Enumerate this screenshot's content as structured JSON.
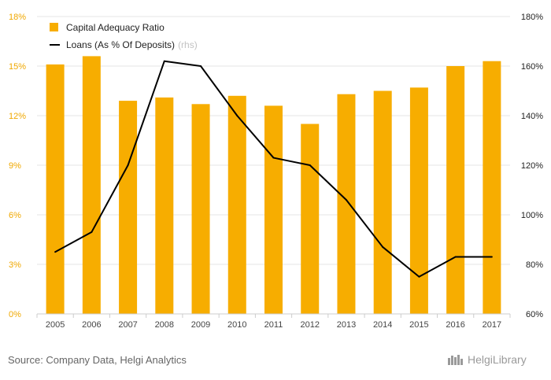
{
  "chart_data": {
    "type": "bar",
    "categories": [
      "2005",
      "2006",
      "2007",
      "2008",
      "2009",
      "2010",
      "2011",
      "2012",
      "2013",
      "2014",
      "2015",
      "2016",
      "2017"
    ],
    "series": [
      {
        "name": "Capital Adequacy Ratio",
        "type": "bar",
        "axis": "left",
        "color": "#f7ad00",
        "values": [
          15.1,
          15.6,
          12.9,
          13.1,
          12.7,
          13.2,
          12.6,
          11.5,
          13.3,
          13.5,
          13.7,
          15.0,
          15.3
        ]
      },
      {
        "name": "Loans (As % Of Deposits)",
        "legend_suffix": "(rhs)",
        "type": "line",
        "axis": "right",
        "color": "#000000",
        "values": [
          85,
          93,
          120,
          162,
          160,
          140,
          123,
          120,
          106,
          87,
          75,
          83,
          83
        ]
      }
    ],
    "y_left": {
      "ylim": [
        0,
        18
      ],
      "ticks": [
        "0%",
        "3%",
        "6%",
        "9%",
        "12%",
        "15%",
        "18%"
      ]
    },
    "y_right": {
      "ylim": [
        60,
        180
      ],
      "ticks": [
        "60%",
        "80%",
        "100%",
        "120%",
        "140%",
        "160%",
        "180%"
      ]
    },
    "grid": true,
    "legend": "top-left"
  },
  "footer": {
    "source": "Source: Company Data, Helgi Analytics",
    "logo_text": "HelgiLibrary"
  },
  "colors": {
    "bar": "#f7ad00",
    "line": "#000000",
    "left_axis_text": "#f0a800",
    "grid": "#e6e6e6"
  }
}
